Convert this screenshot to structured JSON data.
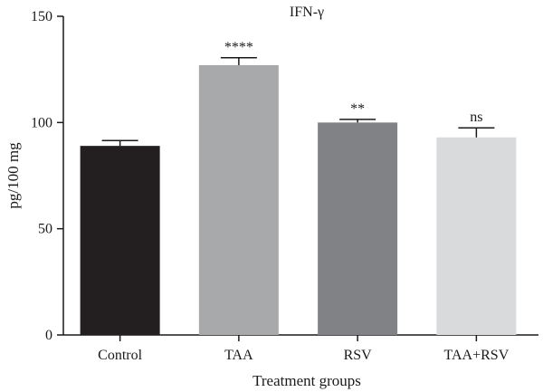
{
  "chart_data": {
    "type": "bar",
    "title": "IFN-γ",
    "xlabel": "Treatment groups",
    "ylabel": "pg/100 mg",
    "ylim": [
      0,
      150
    ],
    "yticks": [
      0,
      50,
      100,
      150
    ],
    "categories": [
      "Control",
      "TAA",
      "RSV",
      "TAA+RSV"
    ],
    "values": [
      89,
      127,
      100,
      93
    ],
    "errors": [
      2.5,
      3.5,
      1.5,
      4.5
    ],
    "significance": [
      "",
      "****",
      "**",
      "ns"
    ],
    "colors": [
      "#231f20",
      "#a7a9ab",
      "#808285",
      "#d9dadb"
    ],
    "grid": false,
    "legend": "none"
  }
}
